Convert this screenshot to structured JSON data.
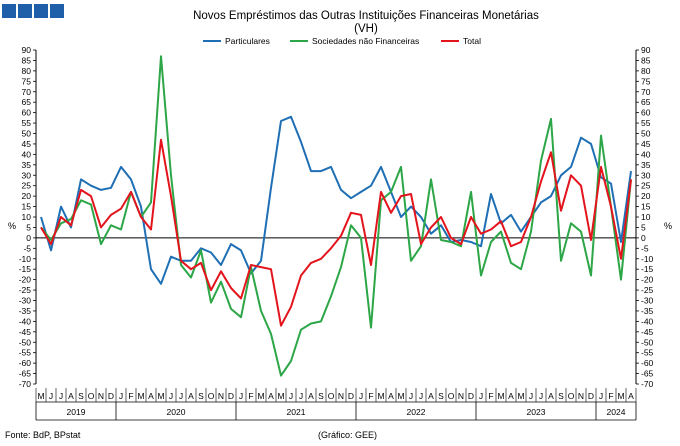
{
  "chart_data": {
    "type": "line",
    "title": "Novos Empréstimos das Outras Instituições Financeiras Monetárias",
    "subtitle": "(VH)",
    "ylabel_left": "%",
    "ylabel_right": "%",
    "ylim": [
      -70,
      90
    ],
    "ytick_step": 5,
    "grid": false,
    "legend_position": "top-center",
    "month_letters": [
      "M",
      "J",
      "J",
      "A",
      "S",
      "O",
      "N",
      "D",
      "J",
      "F",
      "M",
      "A",
      "M",
      "J",
      "J",
      "A",
      "S",
      "O",
      "N",
      "D",
      "J",
      "F",
      "M",
      "A",
      "M",
      "J",
      "J",
      "A",
      "S",
      "O",
      "N",
      "D",
      "J",
      "F",
      "M",
      "A",
      "M",
      "J",
      "J",
      "A",
      "S",
      "O",
      "N",
      "D",
      "J",
      "F",
      "M",
      "A",
      "M",
      "J",
      "J",
      "A",
      "S",
      "O",
      "N",
      "D",
      "J",
      "F",
      "M",
      "A"
    ],
    "years": [
      {
        "label": "2019",
        "start": 0,
        "end": 7
      },
      {
        "label": "2020",
        "start": 8,
        "end": 19
      },
      {
        "label": "2021",
        "start": 20,
        "end": 31
      },
      {
        "label": "2022",
        "start": 32,
        "end": 43
      },
      {
        "label": "2023",
        "start": 44,
        "end": 55
      },
      {
        "label": "2024",
        "start": 56,
        "end": 59
      }
    ],
    "series": [
      {
        "name": "Particulares",
        "color": "#1f6fb5",
        "values": [
          10,
          -6,
          15,
          5,
          28,
          25,
          23,
          24,
          34,
          28,
          15,
          -15,
          -22,
          -9,
          -11,
          -11,
          -5,
          -7,
          -13,
          -3,
          -6,
          -17,
          -11,
          24,
          56,
          58,
          46,
          32,
          32,
          34,
          23,
          19,
          22,
          25,
          34,
          22,
          10,
          15,
          10,
          2,
          6,
          -2,
          -1,
          -2,
          -4,
          21,
          7,
          11,
          3,
          10,
          17,
          20,
          30,
          34,
          48,
          45,
          29,
          26,
          -2,
          32
        ]
      },
      {
        "name": "Sociedades não Financeiras",
        "color": "#2ca646",
        "values": [
          5,
          -1,
          7,
          9,
          18,
          16,
          -3,
          6,
          4,
          22,
          10,
          17,
          87,
          30,
          -13,
          -19,
          -6,
          -31,
          -21,
          -34,
          -38,
          -14,
          -35,
          -46,
          -66,
          -59,
          -44,
          -41,
          -40,
          -28,
          -14,
          6,
          0,
          -43,
          18,
          22,
          34,
          -11,
          -4,
          28,
          -1,
          -2,
          -4,
          22,
          -18,
          -2,
          3,
          -12,
          -15,
          3,
          37,
          57,
          -11,
          7,
          3,
          -18,
          49,
          15,
          -20,
          28
        ]
      },
      {
        "name": "Total",
        "color": "#e3141c",
        "values": [
          5,
          -3,
          10,
          6,
          23,
          20,
          5,
          11,
          14,
          22,
          10,
          4,
          47,
          20,
          -11,
          -15,
          -12,
          -25,
          -16,
          -24,
          -29,
          -13,
          -14,
          -15,
          -42,
          -33,
          -18,
          -12,
          -10,
          -5,
          1,
          12,
          11,
          -13,
          22,
          12,
          20,
          21,
          -3,
          5,
          10,
          0,
          -3,
          10,
          2,
          4,
          8,
          -4,
          -2,
          10,
          27,
          41,
          13,
          30,
          25,
          -1,
          34,
          15,
          -10,
          28
        ]
      }
    ]
  },
  "footer": {
    "source": "Fonte: BdP, BPstat",
    "credit": "(Gráfico: GEE)"
  },
  "colors": {
    "logo": "#1f5ea8",
    "axis": "#000000"
  }
}
